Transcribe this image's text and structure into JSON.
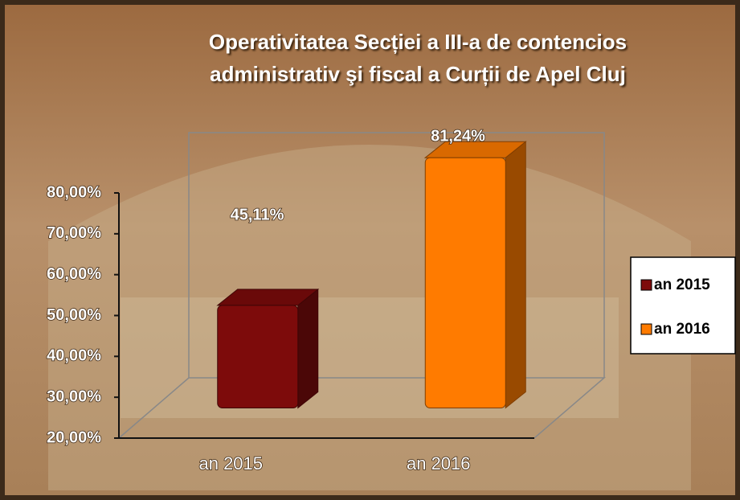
{
  "chart_data": {
    "type": "bar3d",
    "title": "Operativitatea Secției a III-a de contencios administrativ şi fiscal a Curții de Apel Cluj",
    "categories": [
      "an 2015",
      "an 2016"
    ],
    "values": [
      45.11,
      81.24
    ],
    "value_labels": [
      "45,11%",
      "81,24%"
    ],
    "colors": [
      "#7d0b0b",
      "#ff7b00"
    ],
    "ylim": [
      20,
      80
    ],
    "yticks": [
      {
        "value": 20,
        "label": "20,00%"
      },
      {
        "value": 30,
        "label": "30,00%"
      },
      {
        "value": 40,
        "label": "40,00%"
      },
      {
        "value": 50,
        "label": "50,00%"
      },
      {
        "value": 60,
        "label": "60,00%"
      },
      {
        "value": 70,
        "label": "70,00%"
      },
      {
        "value": 80,
        "label": "80,00%"
      }
    ],
    "legend": "right"
  }
}
